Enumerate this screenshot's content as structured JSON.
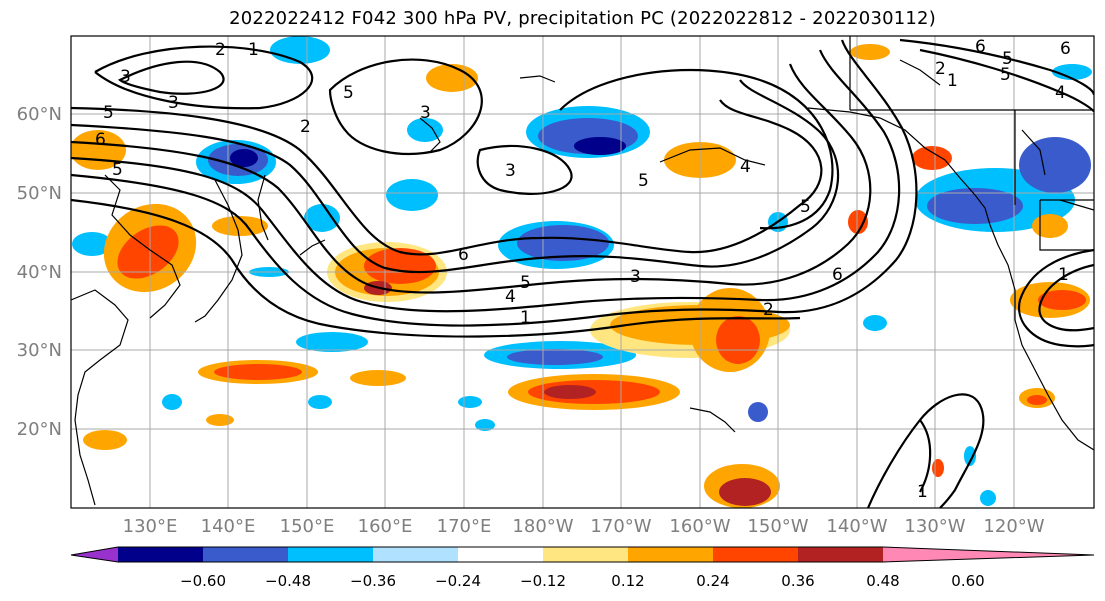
{
  "title": "2022022412 F042 300 hPa PV, precipitation PC (2022022812 - 2022030112)",
  "map": {
    "lat_labels": [
      "60°N",
      "50°N",
      "40°N",
      "30°N",
      "20°N"
    ],
    "lon_labels": [
      "130°E",
      "140°E",
      "150°E",
      "160°E",
      "170°E",
      "180°W",
      "170°W",
      "160°W",
      "150°W",
      "140°W",
      "130°W",
      "120°W"
    ],
    "contour_labels": [
      "3",
      "5",
      "3",
      "6",
      "2",
      "1",
      "2",
      "3",
      "3",
      "5",
      "6",
      "5",
      "4",
      "1",
      "3",
      "5",
      "6",
      "2",
      "5",
      "4",
      "6",
      "5",
      "1",
      "6",
      "5",
      "2",
      "1",
      "4",
      "1",
      "5"
    ]
  },
  "colorbar": {
    "colors": [
      "#9932cc",
      "#00008b",
      "#3a5bcc",
      "#00bfff",
      "#b0e2ff",
      "#ffffff",
      "#ffe680",
      "#ffa500",
      "#ff4500",
      "#b22222",
      "#ff88b4"
    ],
    "tick_labels": [
      "−0.60",
      "−0.48",
      "−0.36",
      "−0.24",
      "−0.12",
      "0.12",
      "0.24",
      "0.36",
      "0.48",
      "0.60"
    ]
  }
}
